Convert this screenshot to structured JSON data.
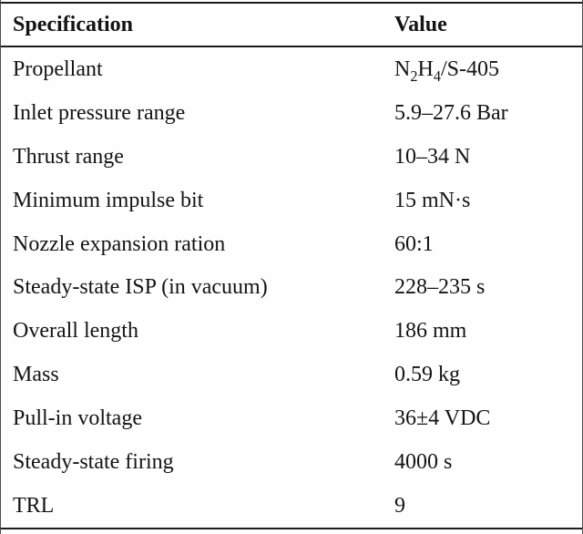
{
  "table": {
    "title": "thruster-specification-table",
    "columns": [
      "Specification",
      "Value"
    ],
    "rows": [
      {
        "spec": "Propellant",
        "value": "N2H4/S-405",
        "value_segments": [
          {
            "t": "N"
          },
          {
            "t": "2",
            "sub": true
          },
          {
            "t": "H"
          },
          {
            "t": "4",
            "sub": true
          },
          {
            "t": "/S-405"
          }
        ]
      },
      {
        "spec": "Inlet pressure range",
        "value": "5.9–27.6 Bar"
      },
      {
        "spec": "Thrust range",
        "value": "10–34 N"
      },
      {
        "spec": "Minimum impulse bit",
        "value": "15 mN·s"
      },
      {
        "spec": "Nozzle expansion ration",
        "value": "60:1"
      },
      {
        "spec": "Steady-state ISP (in vacuum)",
        "value": "228–235 s"
      },
      {
        "spec": "Overall length",
        "value": "186 mm"
      },
      {
        "spec": "Mass",
        "value": "0.59 kg"
      },
      {
        "spec": "Pull-in voltage",
        "value": "36±4 VDC"
      },
      {
        "spec": "Steady-state firing",
        "value": "4000 s"
      },
      {
        "spec": "TRL",
        "value": "9"
      }
    ],
    "colors": {
      "text": "#141414",
      "rule": "#1c1c1c",
      "background": "#fefefe",
      "edge_line": "#4d4d4d"
    }
  }
}
